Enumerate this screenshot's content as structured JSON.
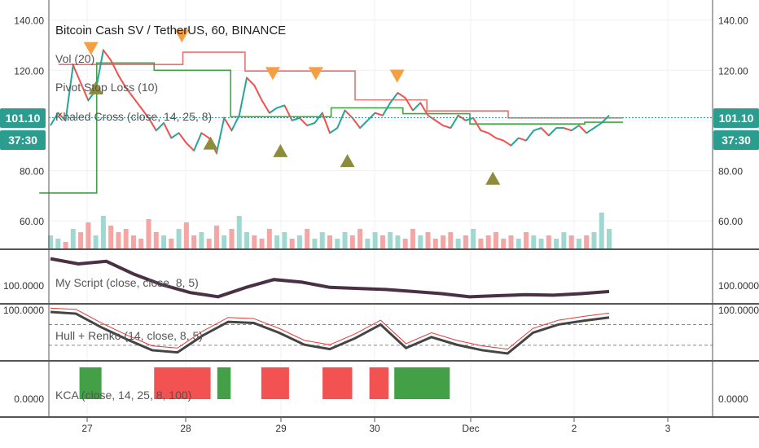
{
  "chart_data": {
    "type": "candlestick",
    "title": "Bitcoin Cash SV / TetherUS, 60, BINANCE",
    "indicators": [
      "Vol (20)",
      "Pivot Stop Loss (10)",
      "Khaled Cross (close, 14, 25, 8)"
    ],
    "price_axis": {
      "ticks": [
        "140.00",
        "120.00",
        "100.00",
        "80.00",
        "60.00"
      ],
      "range": [
        49,
        148
      ]
    },
    "last_price": "101.10",
    "countdown": "37:30",
    "x_ticks": [
      "27",
      "28",
      "29",
      "30",
      "Dec",
      "2",
      "3"
    ],
    "colors": {
      "up": "#26a69a",
      "down": "#ef5350",
      "buy_marker": "#8c8c3c",
      "sell_marker": "#f59e42",
      "pivot_up": "#2e7d32",
      "pivot_down": "#ff1a1a",
      "price_line": "#4a4aa8",
      "badge": "#2a9d8f"
    },
    "price_series": [
      98,
      103,
      100,
      122,
      115,
      108,
      112,
      128,
      124,
      118,
      113,
      109,
      105,
      101,
      96,
      99,
      93,
      95,
      91,
      88,
      95,
      93,
      87,
      101,
      96,
      102,
      117,
      114,
      108,
      103,
      105,
      106,
      100,
      101,
      98,
      99,
      103,
      95,
      97,
      104,
      101,
      97,
      100,
      103,
      102,
      107,
      111,
      109,
      104,
      107,
      102,
      100,
      98,
      97,
      102,
      100,
      101,
      96,
      95,
      93,
      92,
      90,
      93,
      92,
      96,
      97,
      94,
      97,
      97,
      96,
      98,
      95,
      97,
      99,
      102
    ],
    "volume_series": [
      4,
      3,
      2,
      6,
      5,
      8,
      4,
      10,
      7,
      5,
      6,
      4,
      3,
      9,
      5,
      4,
      3,
      6,
      8,
      4,
      5,
      3,
      7,
      4,
      6,
      10,
      5,
      4,
      3,
      6,
      4,
      5,
      3,
      4,
      6,
      3,
      5,
      4,
      3,
      5,
      4,
      6,
      3,
      5,
      4,
      5,
      4,
      3,
      6,
      4,
      5,
      3,
      4,
      5,
      3,
      4,
      6,
      3,
      4,
      5,
      3,
      4,
      3,
      5,
      4,
      3,
      4,
      3,
      5,
      4,
      3,
      4,
      5,
      11,
      6
    ],
    "stop_upper_x": [
      0.3,
      1.6,
      2.25,
      3.4,
      4.15,
      5.0
    ],
    "stop_upper_y": [
      122.3,
      127.2,
      119.7,
      108.2,
      103.8,
      101.0
    ],
    "stop_lower_x": [
      0.1,
      0.7,
      1.3,
      2.1,
      3.15,
      3.9,
      4.6,
      5.8
    ],
    "stop_lower_y": [
      71.1,
      122.9,
      120.0,
      101.5,
      105.0,
      102.7,
      98.6,
      99.3
    ],
    "oscillator_panes": [
      {
        "label": "My Script (close, close, 8, 5)",
        "ticks": [
          "100.0000"
        ]
      },
      {
        "label": "Hull + Renko (14, close, 8, 5)",
        "ticks": [
          "100.0000"
        ]
      },
      {
        "label": "KCA (close, 14, 25, 8, 100)",
        "ticks": [
          "0.0000"
        ]
      }
    ],
    "kca_blocks": [
      {
        "x0": 0.55,
        "x1": 0.78,
        "color": "green"
      },
      {
        "x0": 1.33,
        "x1": 1.92,
        "color": "red"
      },
      {
        "x0": 1.99,
        "x1": 2.13,
        "color": "green"
      },
      {
        "x0": 2.45,
        "x1": 2.74,
        "color": "red"
      },
      {
        "x0": 3.09,
        "x1": 3.4,
        "color": "red"
      },
      {
        "x0": 3.58,
        "x1": 3.78,
        "color": "red"
      },
      {
        "x0": 3.84,
        "x1": 4.42,
        "color": "green"
      }
    ]
  }
}
